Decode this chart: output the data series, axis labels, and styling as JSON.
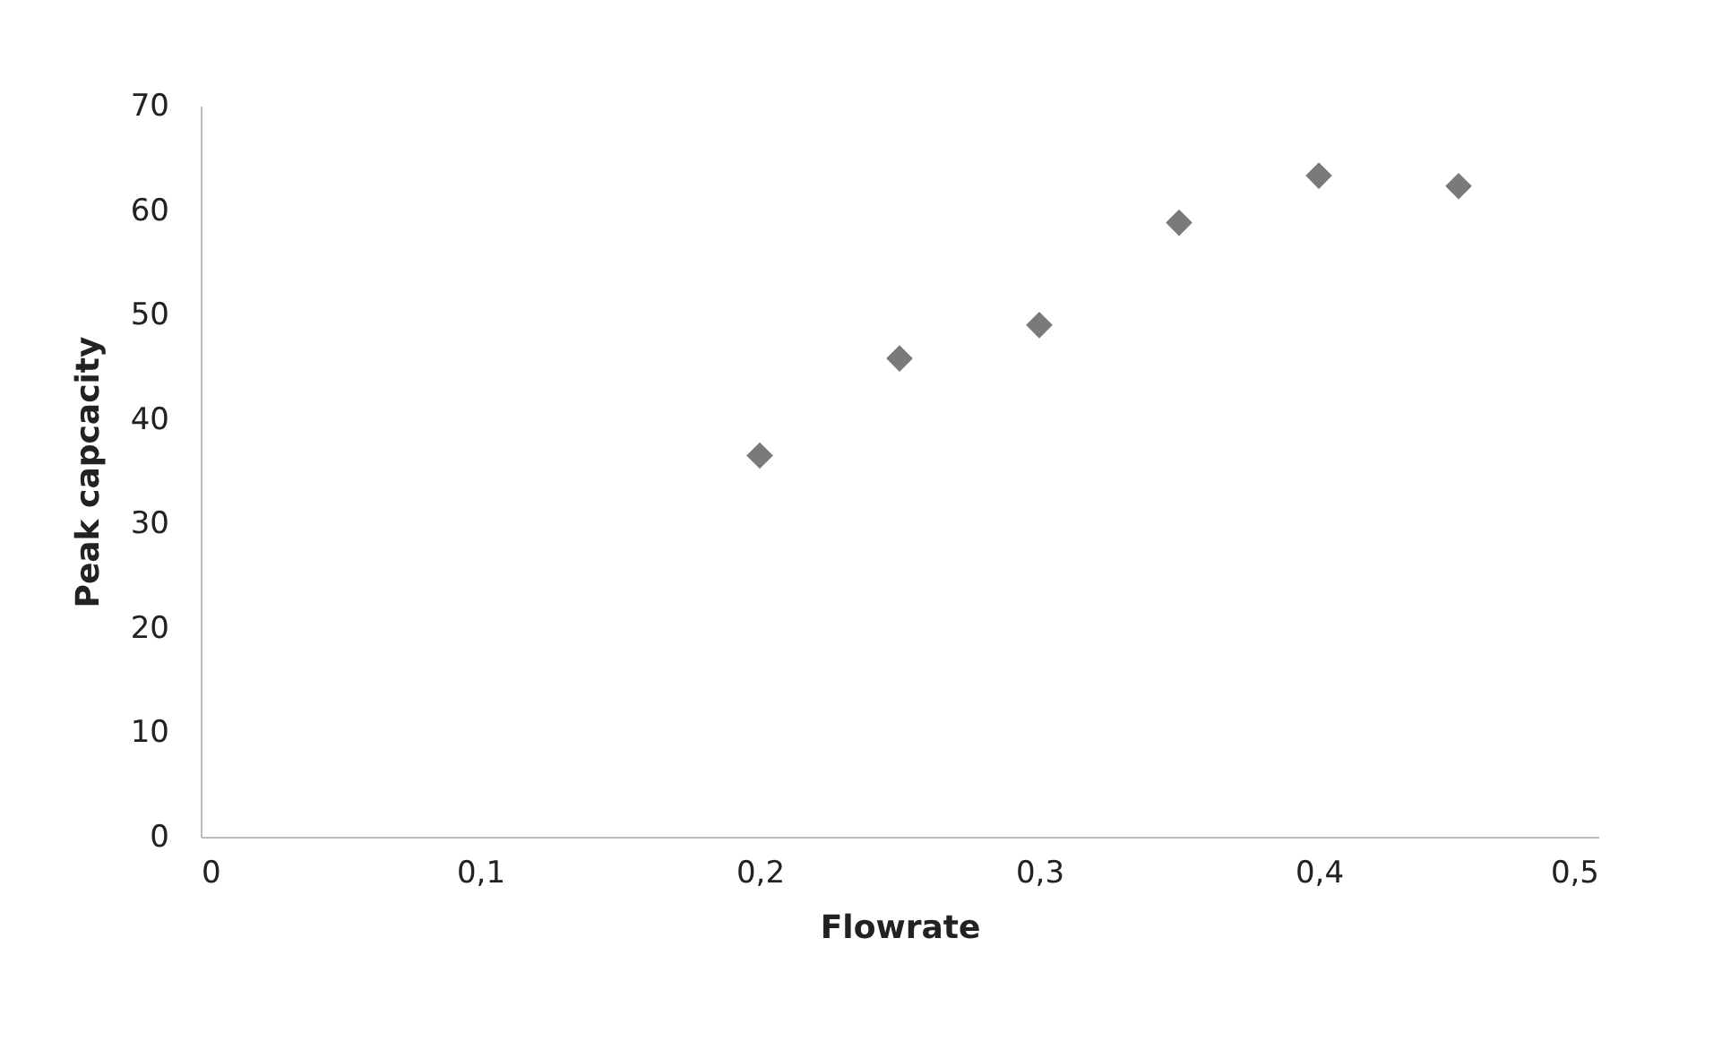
{
  "chart_data": {
    "type": "scatter",
    "xlabel": "Flowrate",
    "ylabel": "Peak capcacity",
    "x": [
      0.2,
      0.25,
      0.3,
      0.35,
      0.4,
      0.45
    ],
    "series": [
      {
        "color": "#7a7a7a",
        "values": [
          36.5,
          45.8,
          49,
          58.8,
          63.3,
          62.3
        ]
      }
    ],
    "marker": "diamond",
    "grid": false,
    "legend": false,
    "xlim": [
      0,
      0.5
    ],
    "xticks": [
      0,
      {
        "value": 0.1,
        "label": "0,1"
      },
      {
        "value": 0.2,
        "label": "0,2"
      },
      {
        "value": 0.3,
        "label": "0,3"
      },
      {
        "value": 0.4,
        "label": "0,4"
      },
      {
        "value": 0.5,
        "label": "0,5"
      }
    ],
    "ylim": [
      0,
      70
    ],
    "yticks": [
      0,
      10,
      20,
      30,
      40,
      50,
      60,
      70
    ]
  }
}
